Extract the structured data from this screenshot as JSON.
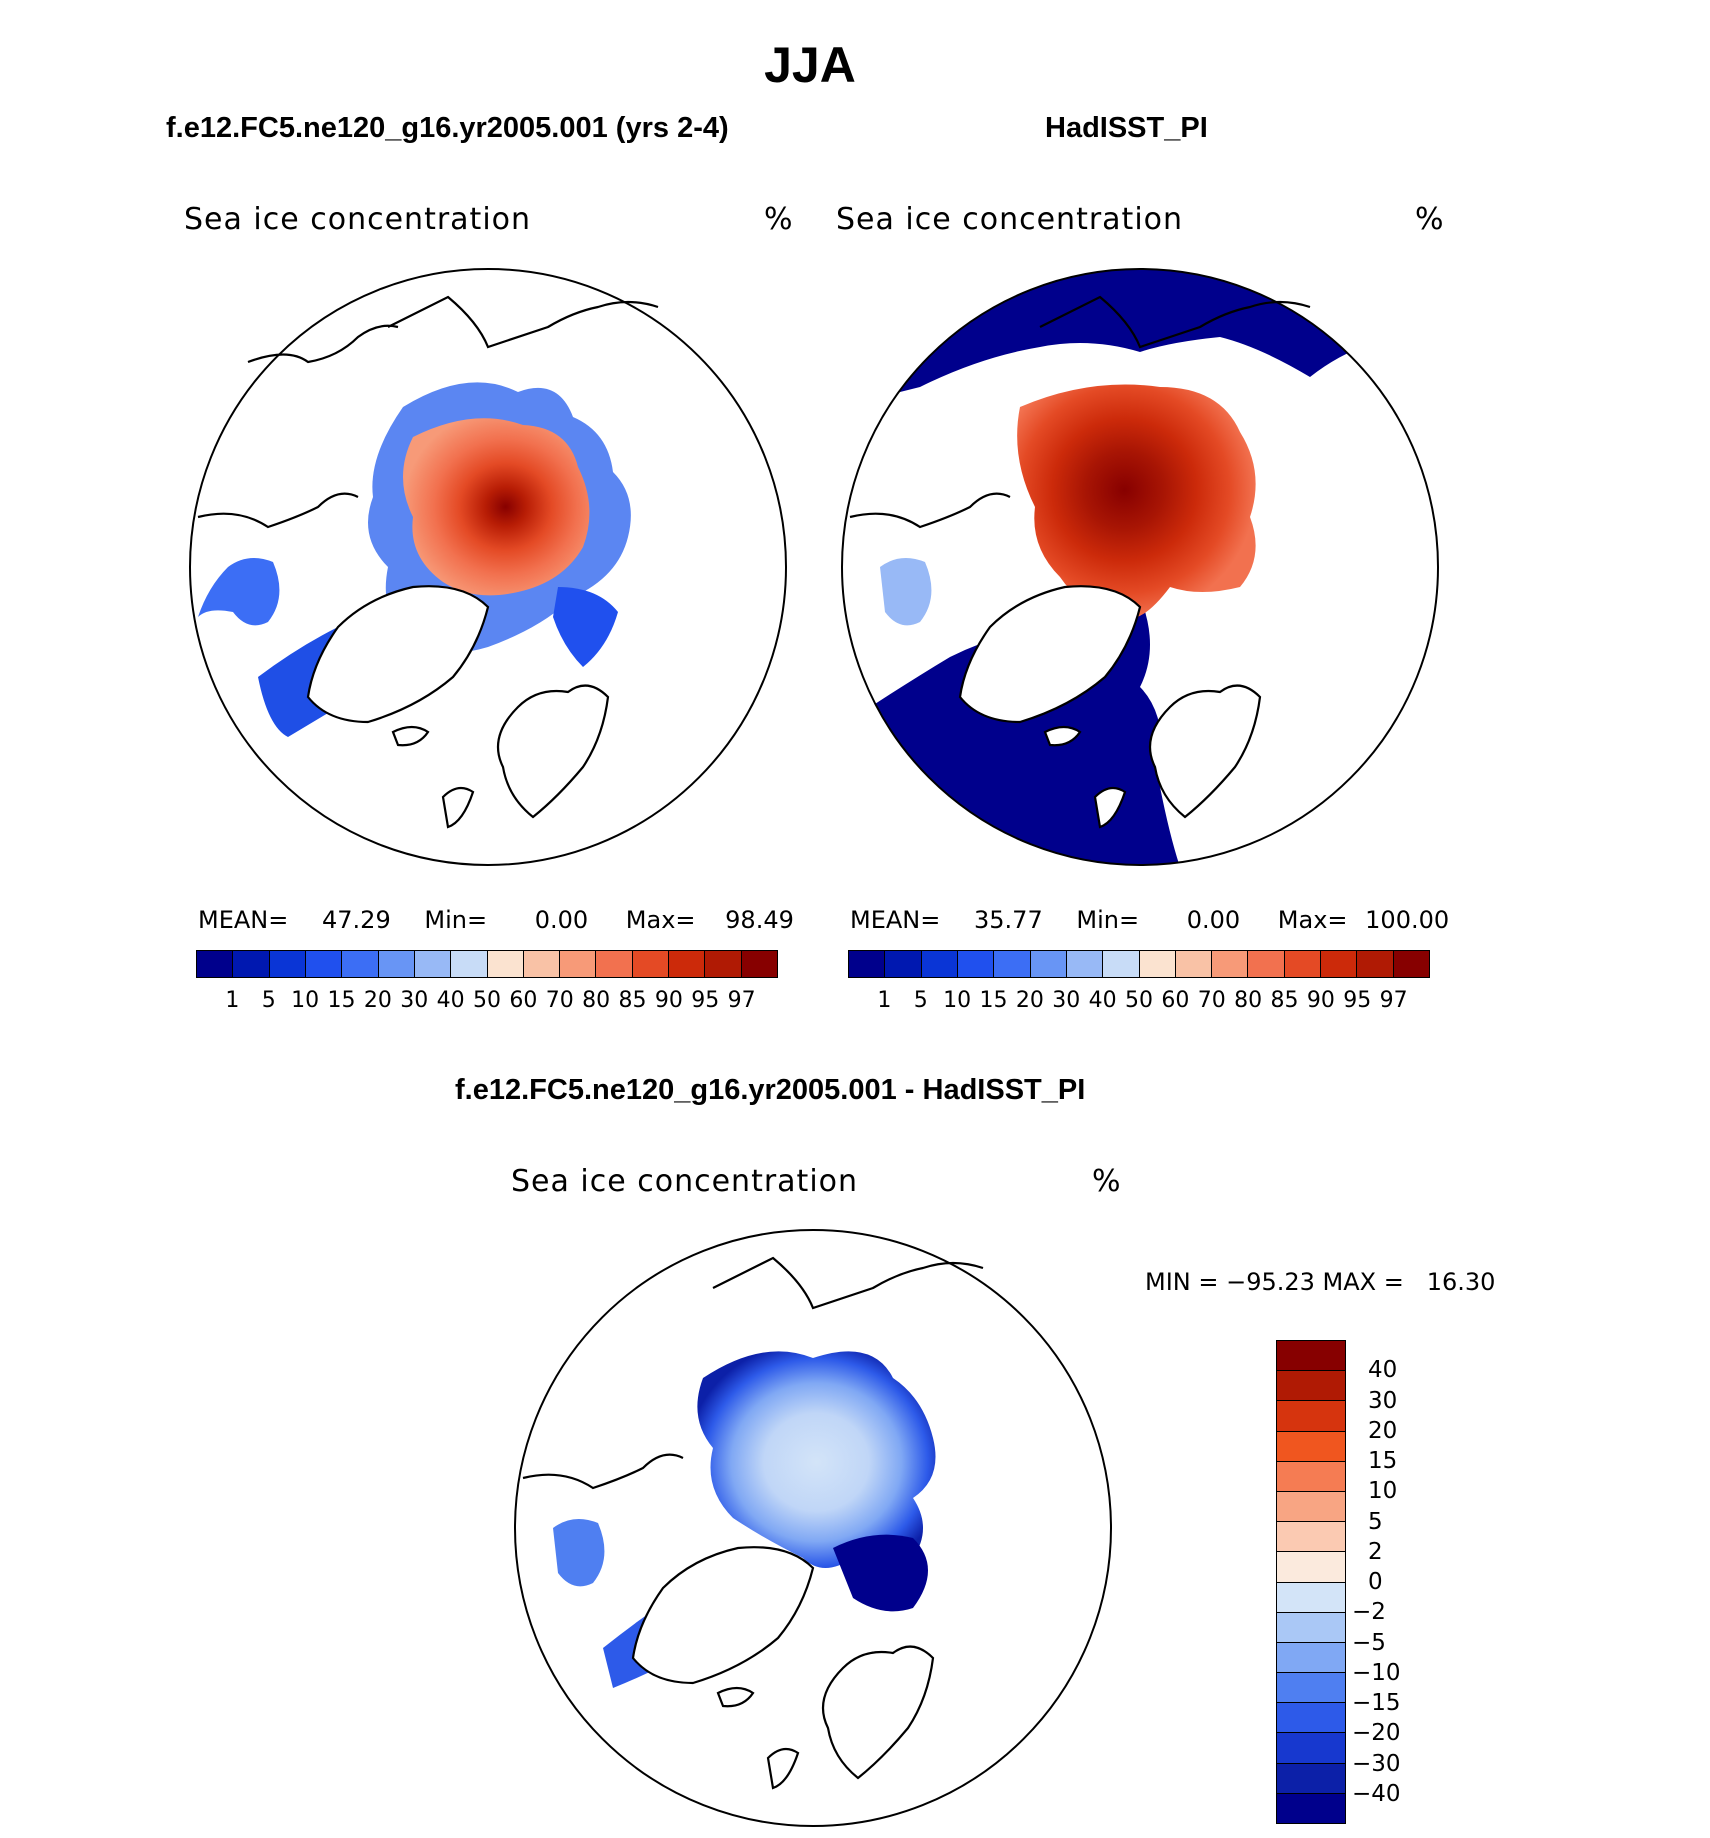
{
  "page": {
    "title": "JJA"
  },
  "panels": {
    "model": {
      "subtitle": "f.e12.FC5.ne120_g16.yr2005.001 (yrs 2-4)",
      "field": "Sea ice concentration",
      "units": "%",
      "mean_label": "MEAN=",
      "mean": "47.29",
      "min_label": "Min=",
      "min": "0.00",
      "max_label": "Max=",
      "max": "98.49"
    },
    "obs": {
      "subtitle": "HadISST_PI",
      "field": "Sea ice concentration",
      "units": "%",
      "mean_label": "MEAN=",
      "mean": "35.77",
      "min_label": "Min=",
      "min": "0.00",
      "max_label": "Max=",
      "max": "100.00"
    },
    "diff": {
      "subtitle": "f.e12.FC5.ne120_g16.yr2005.001 - HadISST_PI",
      "field": "Sea ice concentration",
      "units": "%",
      "minmax_text": "MIN = −95.23 MAX =   16.30"
    }
  },
  "colorbars": {
    "abs_levels": [
      "1",
      "5",
      "10",
      "15",
      "20",
      "30",
      "40",
      "50",
      "60",
      "70",
      "80",
      "85",
      "90",
      "95",
      "97"
    ],
    "abs_colors": [
      "#00008c",
      "#0018b0",
      "#0a35d6",
      "#2050ee",
      "#3c6ef5",
      "#6895f5",
      "#98b9f6",
      "#c8dcf7",
      "#fbe3d0",
      "#f9c2a6",
      "#f79a78",
      "#f2714f",
      "#e44a25",
      "#cc2a0a",
      "#b01a04",
      "#870000"
    ],
    "diff_levels": [
      "40",
      "30",
      "20",
      "15",
      "10",
      "5",
      "2",
      "0",
      "−2",
      "−5",
      "−10",
      "−15",
      "−20",
      "−30",
      "−40"
    ],
    "diff_colors": [
      "#870000",
      "#b01a04",
      "#d6340e",
      "#f0561f",
      "#f57c53",
      "#f8a583",
      "#fbcab2",
      "#fbeadd",
      "#d3e4f8",
      "#aac8f6",
      "#80a8f4",
      "#4f7ff1",
      "#2d5ae9",
      "#1738cf",
      "#0c20a8",
      "#00008c"
    ]
  }
}
